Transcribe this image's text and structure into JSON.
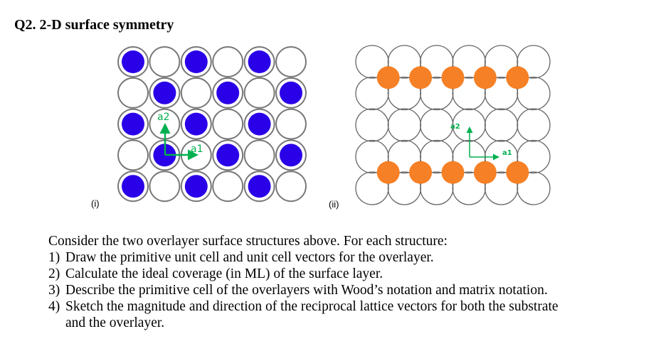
{
  "title": "Q2. 2-D surface symmetry",
  "figure_i": {
    "caption": "(i)",
    "occupied_rows": [
      "101010",
      "010101",
      "101010",
      "010101",
      "101010"
    ],
    "adsorbate_color": "#2a00e8",
    "vector_labels": [
      "a1",
      "a2"
    ],
    "vector_color": "#00b050"
  },
  "figure_ii": {
    "caption": "(ii)",
    "adsorbate_rows_between": [
      1,
      4
    ],
    "adsorbate_count_per_row": 5,
    "adsorbate_color": "#f58025",
    "vector_labels": [
      "a1",
      "a2"
    ],
    "vector_color": "#00b050"
  },
  "intro": "Consider the two overlayer surface structures above. For each structure:",
  "items": [
    {
      "num": "1)",
      "text": "Draw the primitive unit cell and unit cell vectors for the overlayer."
    },
    {
      "num": "2)",
      "text": "Calculate the ideal coverage (in ML) of the surface layer."
    },
    {
      "num": "3)",
      "text": "Describe the primitive cell of the overlayers with Wood’s notation and matrix notation."
    },
    {
      "num": "4)",
      "text": "Sketch the magnitude and direction of the reciprocal lattice vectors for both the substrate",
      "cont": "and the overlayer."
    }
  ]
}
